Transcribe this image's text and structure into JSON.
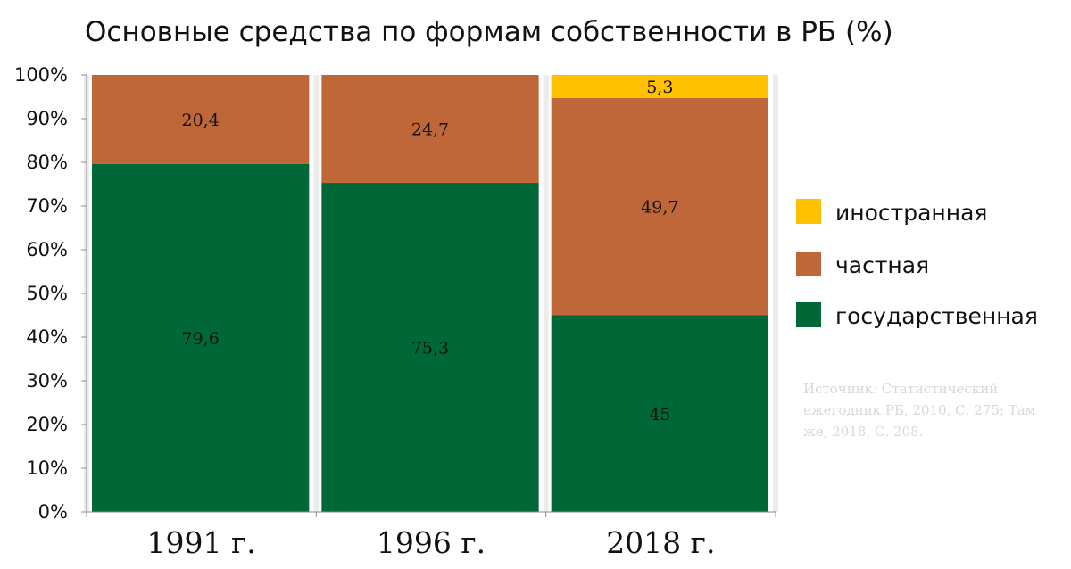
{
  "chart_data": {
    "type": "bar",
    "stacked": true,
    "title": "Основные средства по формам собственности в РБ (%)",
    "categories": [
      "1991 г.",
      "1996 г.",
      "2018 г."
    ],
    "series": [
      {
        "name": "государственная",
        "color": "#006837",
        "values": [
          79.6,
          75.3,
          45
        ]
      },
      {
        "name": "частная",
        "color": "#c0673a",
        "values": [
          20.4,
          24.7,
          49.7
        ]
      },
      {
        "name": "иностранная",
        "color": "#ffc000",
        "values": [
          null,
          null,
          5.3
        ]
      }
    ],
    "data_labels": [
      [
        "79,6",
        "75,3",
        "45"
      ],
      [
        "20,4",
        "24,7",
        "49,7"
      ],
      [
        "",
        "",
        "5,3"
      ]
    ],
    "ylim": [
      0,
      100
    ],
    "yticks": [
      "0%",
      "10%",
      "20%",
      "30%",
      "40%",
      "50%",
      "60%",
      "70%",
      "80%",
      "90%",
      "100%"
    ],
    "legend_position": "right",
    "legend_order": [
      "иностранная",
      "частная",
      "государственная"
    ],
    "note": [
      "Источник: Статистический",
      "ежегодник РБ, 2010, С. 275; Там",
      "же, 2018, С. 208."
    ]
  }
}
